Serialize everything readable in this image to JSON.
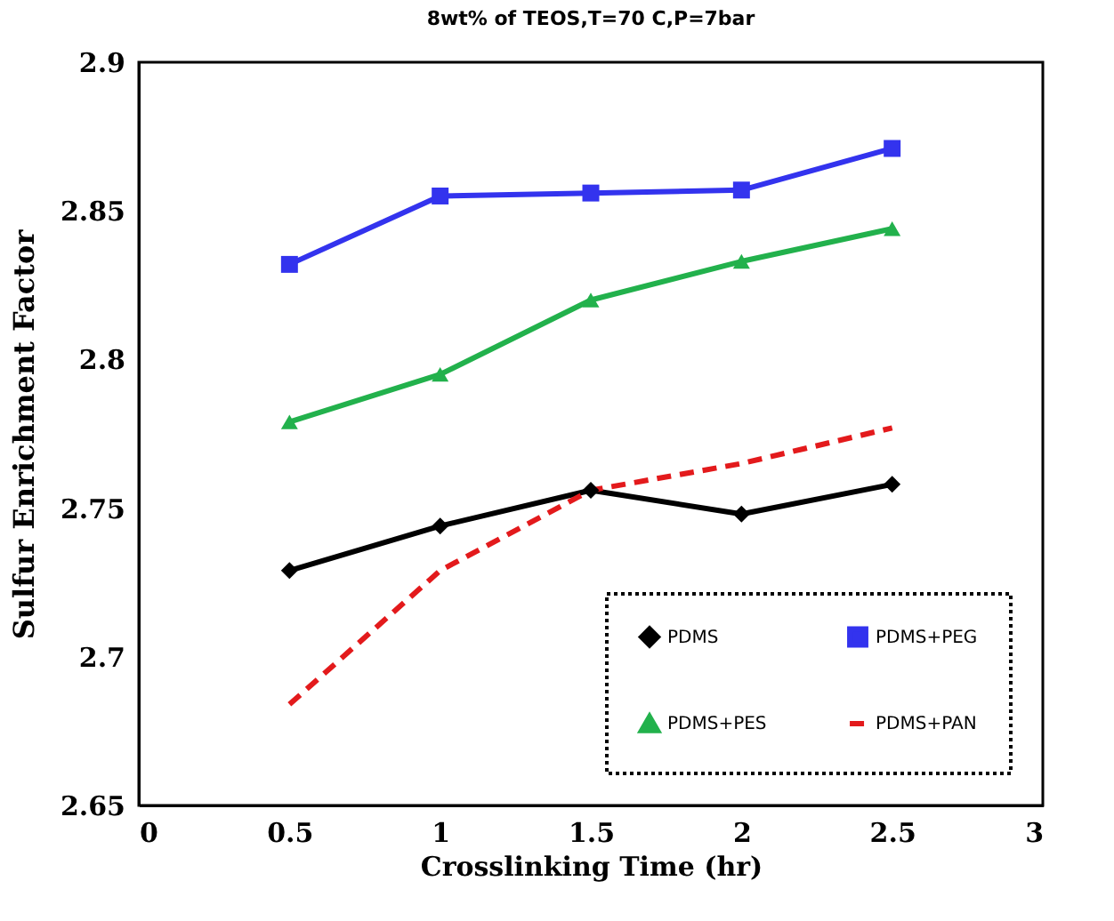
{
  "chart_data": {
    "type": "line",
    "title": "8wt% of TEOS,T=70 C,P=7bar",
    "xlabel": "Crosslinking Time (hr)",
    "ylabel": "Sulfur Enrichment Factor",
    "x": [
      0.5,
      1,
      1.5,
      2,
      2.5
    ],
    "series": [
      {
        "name": "PDMS",
        "color": "#000000",
        "marker": "diamond",
        "line_style": "solid",
        "values": [
          2.729,
          2.744,
          2.756,
          2.748,
          2.758
        ]
      },
      {
        "name": "PDMS+PEG",
        "color": "#3333ee",
        "marker": "square",
        "line_style": "solid",
        "values": [
          2.832,
          2.855,
          2.856,
          2.857,
          2.871
        ]
      },
      {
        "name": "PDMS+PES",
        "color": "#22b14c",
        "marker": "triangle",
        "line_style": "solid",
        "values": [
          2.779,
          2.795,
          2.82,
          2.833,
          2.844
        ]
      },
      {
        "name": "PDMS+PAN",
        "color": "#e31a1c",
        "marker": "none",
        "line_style": "dashed",
        "values": [
          2.684,
          2.729,
          2.756,
          2.765,
          2.777
        ]
      }
    ],
    "xlim": [
      0,
      3
    ],
    "xticks": [
      0,
      0.5,
      1,
      1.5,
      2,
      2.5,
      3
    ],
    "ylim": [
      2.65,
      2.9
    ],
    "yticks": [
      2.65,
      2.7,
      2.75,
      2.8,
      2.85,
      2.9
    ],
    "grid": false,
    "legend": "bottom right"
  }
}
